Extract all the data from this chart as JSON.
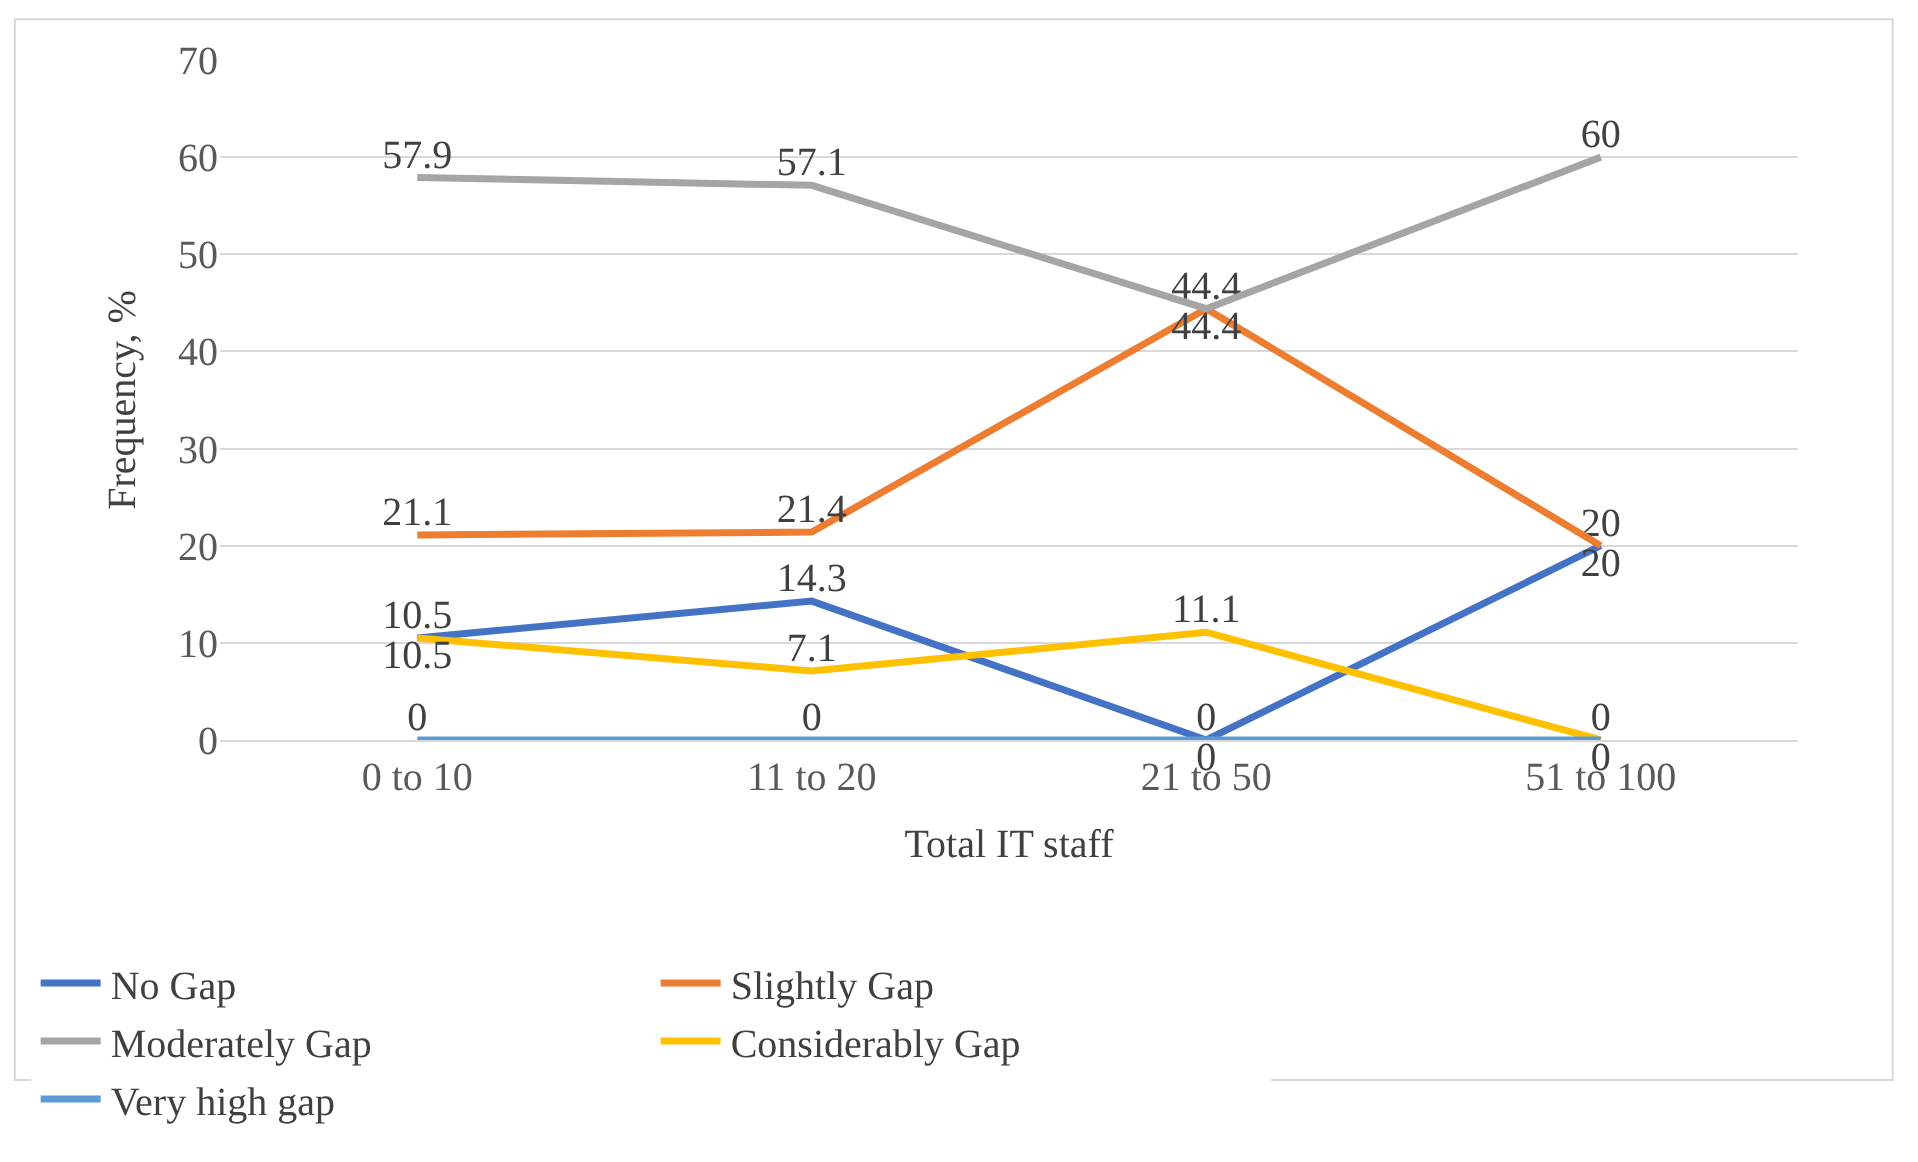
{
  "chart_data": {
    "type": "line",
    "xlabel": "Total IT staff",
    "ylabel": "Frequency, %",
    "categories": [
      "0 to 10",
      "11 to 20",
      "21 to 50",
      "51 to 100"
    ],
    "series": [
      {
        "name": "No Gap",
        "color": "#4472c4",
        "values": [
          10.5,
          14.3,
          0,
          20
        ]
      },
      {
        "name": "Slightly Gap",
        "color": "#ed7d31",
        "values": [
          21.1,
          21.4,
          44.4,
          20
        ]
      },
      {
        "name": "Moderately Gap",
        "color": "#a5a5a5",
        "values": [
          57.9,
          57.1,
          44.4,
          60
        ]
      },
      {
        "name": "Considerably Gap",
        "color": "#ffc000",
        "values": [
          10.5,
          7.1,
          11.1,
          0
        ]
      },
      {
        "name": "Very high gap",
        "color": "#5b9bd5",
        "values": [
          0,
          0,
          0,
          0
        ]
      }
    ],
    "ylim": [
      0,
      70
    ],
    "yticks": [
      0,
      10,
      20,
      30,
      40,
      50,
      60,
      70
    ],
    "grid": "y",
    "legend": "bottom",
    "marker": "none",
    "line_style": "solid",
    "data_labels": true
  }
}
